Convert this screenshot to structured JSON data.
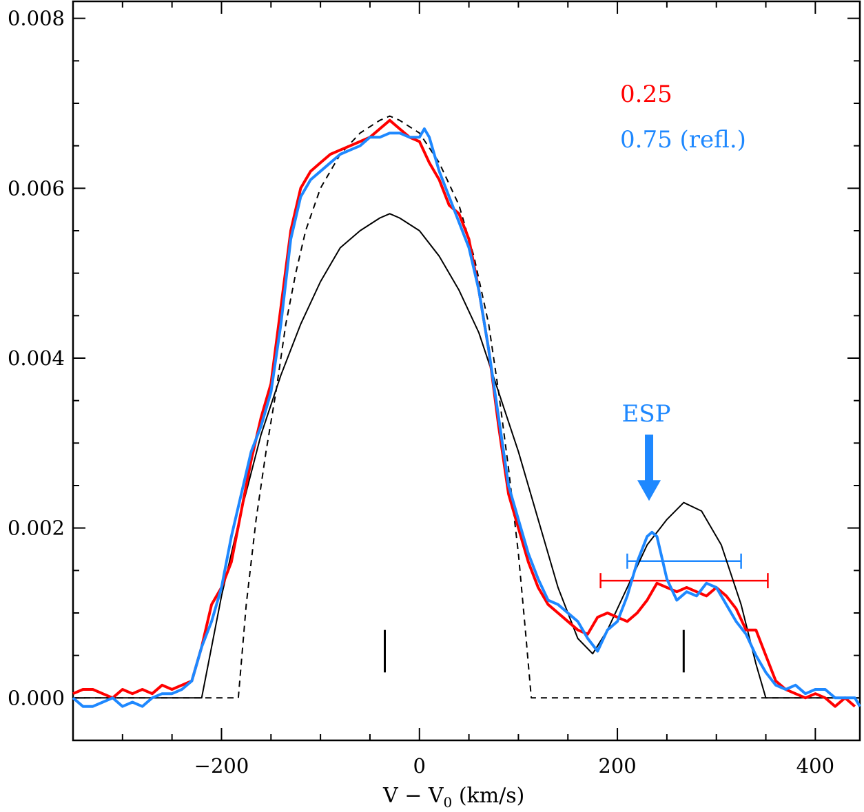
{
  "chart_data": {
    "type": "line",
    "title": "",
    "xlabel": "V − V",
    "xlabel_subscript": "0",
    "xlabel_units": " (km/s)",
    "ylabel": "",
    "xlim": [
      -350,
      445
    ],
    "ylim": [
      -0.0005,
      0.0082
    ],
    "x_ticks": [
      -200,
      0,
      200,
      400
    ],
    "x_tick_labels": [
      "−200",
      "0",
      "200",
      "400"
    ],
    "y_ticks": [
      0.0,
      0.002,
      0.004,
      0.006,
      0.008
    ],
    "y_tick_labels": [
      "0.000",
      "0.002",
      "0.004",
      "0.006",
      "0.008"
    ],
    "grid": false,
    "legend_position": "top-right",
    "legend": [
      {
        "label": "0.25",
        "color": "#ff0000"
      },
      {
        "label": "0.75 (refl.)",
        "color": "#1e88ff"
      }
    ],
    "annotations": {
      "arrow_label": "ESP",
      "arrow_x": 232,
      "arrow_y_top": 0.0031,
      "arrow_y_bottom": 0.00232,
      "arrow_color": "#1e88ff"
    },
    "markers": [
      {
        "x": -35,
        "y_low": 0.0003,
        "y_high": 0.0008
      },
      {
        "x": 267,
        "y_low": 0.0003,
        "y_high": 0.0008
      }
    ],
    "horizontal_bars": [
      {
        "name": "0.75 (refl.)",
        "x_min": 210,
        "x_max": 325,
        "y": 0.00161,
        "color": "#1e88ff"
      },
      {
        "name": "0.25",
        "x_min": 183,
        "x_max": 352,
        "y": 0.00138,
        "color": "#ff0000"
      }
    ],
    "series": [
      {
        "name": "0.25",
        "style": "solid",
        "color": "#ff0000",
        "width": 4,
        "x": [
          -350,
          -340,
          -330,
          -320,
          -310,
          -300,
          -290,
          -280,
          -270,
          -260,
          -250,
          -240,
          -230,
          -220,
          -210,
          -200,
          -190,
          -180,
          -170,
          -160,
          -150,
          -140,
          -130,
          -120,
          -110,
          -100,
          -90,
          -80,
          -70,
          -60,
          -50,
          -40,
          -30,
          -20,
          -10,
          0,
          10,
          20,
          30,
          40,
          50,
          60,
          70,
          80,
          90,
          100,
          110,
          120,
          130,
          140,
          150,
          160,
          170,
          180,
          190,
          200,
          210,
          220,
          230,
          240,
          250,
          260,
          270,
          280,
          290,
          300,
          310,
          320,
          330,
          340,
          350,
          360,
          370,
          380,
          390,
          400,
          410,
          420,
          430,
          440
        ],
        "y": [
          5e-05,
          0.0001,
          0.0001,
          5e-05,
          0.0,
          0.0001,
          5e-05,
          0.0001,
          5e-05,
          0.00015,
          0.0001,
          0.00015,
          0.0002,
          0.0006,
          0.0011,
          0.0013,
          0.0016,
          0.0022,
          0.0028,
          0.0033,
          0.0037,
          0.0046,
          0.0055,
          0.006,
          0.0062,
          0.0063,
          0.0064,
          0.00645,
          0.0065,
          0.00655,
          0.0066,
          0.0067,
          0.0068,
          0.0067,
          0.0066,
          0.00655,
          0.0063,
          0.0061,
          0.0058,
          0.0057,
          0.0054,
          0.0048,
          0.0041,
          0.0032,
          0.0024,
          0.002,
          0.0016,
          0.0013,
          0.0011,
          0.001,
          0.0009,
          0.0008,
          0.00075,
          0.00095,
          0.001,
          0.00095,
          0.0009,
          0.001,
          0.00115,
          0.00135,
          0.0013,
          0.00125,
          0.0013,
          0.00125,
          0.0012,
          0.0013,
          0.0012,
          0.00105,
          0.0008,
          0.0008,
          0.0005,
          0.0002,
          0.0001,
          5e-05,
          0.0,
          5e-05,
          0.0,
          -0.0001,
          0.0,
          -0.0001
        ]
      },
      {
        "name": "0.75 (refl.)",
        "style": "solid",
        "color": "#1e88ff",
        "width": 4,
        "x": [
          -350,
          -340,
          -330,
          -320,
          -310,
          -300,
          -290,
          -280,
          -270,
          -260,
          -250,
          -240,
          -230,
          -220,
          -210,
          -200,
          -190,
          -180,
          -170,
          -160,
          -150,
          -140,
          -130,
          -120,
          -110,
          -100,
          -90,
          -80,
          -70,
          -60,
          -50,
          -40,
          -30,
          -20,
          -10,
          0,
          5,
          10,
          20,
          30,
          40,
          50,
          60,
          70,
          80,
          90,
          100,
          110,
          120,
          130,
          140,
          150,
          160,
          170,
          180,
          190,
          200,
          210,
          220,
          230,
          235,
          240,
          250,
          260,
          270,
          280,
          290,
          300,
          310,
          320,
          330,
          340,
          350,
          360,
          370,
          380,
          390,
          400,
          410,
          420,
          430,
          440,
          445
        ],
        "y": [
          0.0,
          -0.0001,
          -0.0001,
          -5e-05,
          0.0,
          -0.0001,
          -5e-05,
          -0.0001,
          0.0,
          5e-05,
          5e-05,
          0.0001,
          0.0002,
          0.0006,
          0.0009,
          0.0013,
          0.0019,
          0.0024,
          0.0029,
          0.0032,
          0.0036,
          0.0044,
          0.0054,
          0.0059,
          0.0061,
          0.0062,
          0.0063,
          0.0064,
          0.00645,
          0.0065,
          0.0066,
          0.0066,
          0.00665,
          0.00665,
          0.0066,
          0.0066,
          0.0067,
          0.0066,
          0.0062,
          0.0059,
          0.0056,
          0.0053,
          0.0048,
          0.0041,
          0.0033,
          0.0025,
          0.0021,
          0.0017,
          0.0014,
          0.00115,
          0.0011,
          0.001,
          0.0009,
          0.0007,
          0.00055,
          0.0008,
          0.0009,
          0.0012,
          0.0016,
          0.0019,
          0.00195,
          0.0019,
          0.0014,
          0.00115,
          0.00125,
          0.0012,
          0.00135,
          0.0013,
          0.0011,
          0.0009,
          0.00075,
          0.0005,
          0.0003,
          0.00015,
          0.0001,
          0.00015,
          5e-05,
          0.0001,
          0.0001,
          0.0,
          0.0,
          0.0,
          -0.0001
        ]
      },
      {
        "name": "",
        "style": "solid",
        "color": "#000000",
        "width": 2,
        "x": [
          -350,
          -220,
          -200,
          -180,
          -160,
          -140,
          -120,
          -100,
          -80,
          -60,
          -40,
          -30,
          -20,
          0,
          20,
          40,
          60,
          80,
          100,
          120,
          140,
          160,
          175,
          190,
          210,
          230,
          250,
          267,
          285,
          305,
          325,
          340,
          350,
          445
        ],
        "y": [
          0.0,
          0.0,
          0.0012,
          0.0022,
          0.0031,
          0.0038,
          0.0044,
          0.0049,
          0.0053,
          0.0055,
          0.00565,
          0.0057,
          0.00565,
          0.0055,
          0.0052,
          0.0048,
          0.0043,
          0.0036,
          0.0029,
          0.0021,
          0.0013,
          0.0007,
          0.00052,
          0.0008,
          0.0013,
          0.0018,
          0.0021,
          0.0023,
          0.0022,
          0.0018,
          0.0011,
          0.0004,
          0.0,
          0.0
        ]
      },
      {
        "name": "",
        "style": "dashed",
        "color": "#000000",
        "width": 2,
        "x": [
          -350,
          -183,
          -175,
          -165,
          -155,
          -145,
          -135,
          -125,
          -115,
          -100,
          -80,
          -60,
          -40,
          -30,
          -20,
          0,
          20,
          40,
          55,
          70,
          80,
          90,
          100,
          107,
          113,
          445
        ],
        "y": [
          0.0,
          0.0,
          0.0011,
          0.0021,
          0.0029,
          0.0036,
          0.0044,
          0.005,
          0.0055,
          0.006,
          0.0064,
          0.00665,
          0.0068,
          0.00685,
          0.0068,
          0.00665,
          0.0063,
          0.0058,
          0.0052,
          0.0044,
          0.0036,
          0.0027,
          0.0017,
          0.0008,
          0.0,
          0.0
        ]
      }
    ]
  }
}
